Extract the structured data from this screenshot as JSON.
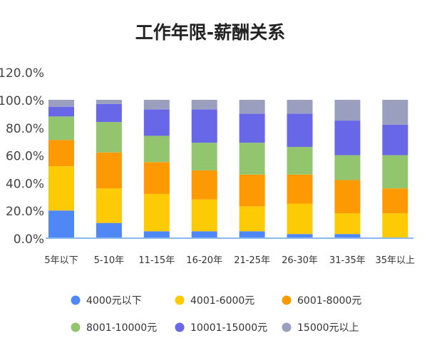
{
  "chart_data": {
    "type": "bar",
    "stacked": true,
    "title": "工作年限-薪酬关系",
    "xlabel": "",
    "ylabel": "",
    "ylim": [
      0,
      120
    ],
    "y_ticks": [
      "0.0%",
      "20.0%",
      "40.0%",
      "60.0%",
      "80.0%",
      "100.0%",
      "120.0%"
    ],
    "grid": false,
    "legend_position": "bottom",
    "categories": [
      "5年以下",
      "5-10年",
      "11-15年",
      "16-20年",
      "21-25年",
      "26-30年",
      "31-35年",
      "35年以上"
    ],
    "series": [
      {
        "name": "4000元以下",
        "color": "#4f87f5",
        "values": [
          20,
          11,
          5,
          5,
          5,
          3,
          3,
          0
        ]
      },
      {
        "name": "4001-6000元",
        "color": "#fccb05",
        "values": [
          32,
          25,
          27,
          23,
          18,
          22,
          15,
          18
        ]
      },
      {
        "name": "6001-8000元",
        "color": "#fd9a03",
        "values": [
          19,
          26,
          23,
          21,
          23,
          21,
          24,
          18
        ]
      },
      {
        "name": "8001-10000元",
        "color": "#93c56f",
        "values": [
          17,
          22,
          19,
          20,
          23,
          20,
          18,
          24
        ]
      },
      {
        "name": "10001-15000元",
        "color": "#6767e8",
        "values": [
          7,
          13,
          19,
          24,
          21,
          24,
          25,
          22
        ]
      },
      {
        "name": "15000元以上",
        "color": "#9a9fbf",
        "values": [
          5,
          3,
          7,
          7,
          10,
          10,
          15,
          18
        ]
      }
    ],
    "axis_color": "#8cb8f0"
  }
}
